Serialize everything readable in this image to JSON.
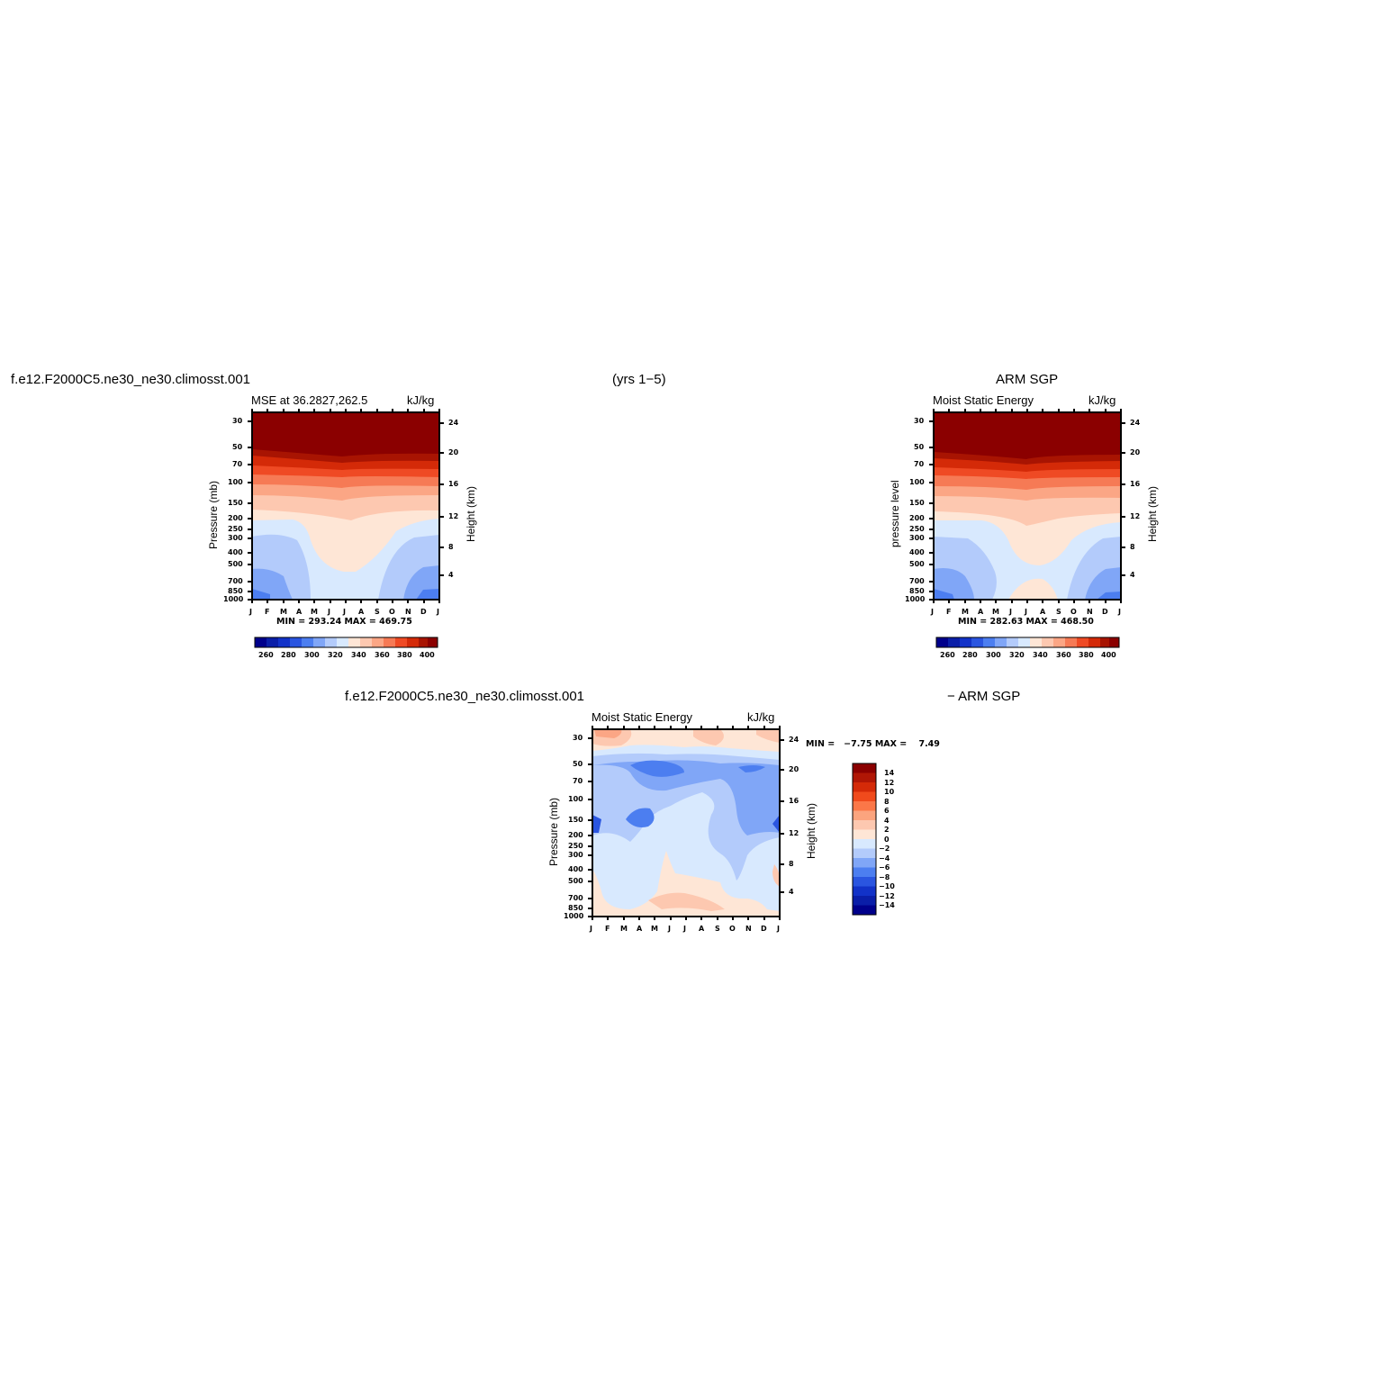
{
  "headers": {
    "case_left": "f.e12.F2000C5.ne30_ne30.climosst.001",
    "years": "(yrs 1−5)",
    "obs_right": "ARM SGP",
    "case_bottom": "f.e12.F2000C5.ne30_ne30.climosst.001",
    "diff_suffix": "− ARM SGP"
  },
  "chart_data": [
    {
      "type": "heatmap",
      "panel": "model",
      "title_left": "MSE at 36.2827,262.5",
      "title_right": "kJ/kg",
      "ylabel": "Pressure (mb)",
      "ylabel_right": "Height (km)",
      "x_ticks": [
        "J",
        "F",
        "M",
        "A",
        "M",
        "J",
        "J",
        "A",
        "S",
        "O",
        "N",
        "D",
        "J"
      ],
      "y_ticks": [
        "30",
        "50",
        "70",
        "100",
        "150",
        "200",
        "250",
        "300",
        "400",
        "500",
        "700",
        "850",
        "1000"
      ],
      "y_right_ticks": [
        "24",
        "20",
        "16",
        "12",
        "8",
        "4"
      ],
      "minmax_text": "MIN = 293.24 MAX = 469.75",
      "colorbar_labels": [
        "260",
        "280",
        "300",
        "320",
        "340",
        "360",
        "380",
        "400"
      ],
      "colors": [
        "#00008b",
        "#0a1ea8",
        "#1232c8",
        "#2a55e0",
        "#4c7ef0",
        "#80a6f7",
        "#b3cbfb",
        "#d8e9fe",
        "#fee6d6",
        "#fdc8b0",
        "#fba685",
        "#f67a55",
        "#ef4a24",
        "#d42a08",
        "#a81402",
        "#8b0000"
      ],
      "levels": [
        260,
        270,
        280,
        290,
        300,
        310,
        320,
        330,
        340,
        350,
        360,
        370,
        380,
        390,
        400
      ]
    },
    {
      "type": "heatmap",
      "panel": "obs",
      "title_left": "Moist Static Energy",
      "title_right": "kJ/kg",
      "ylabel": "pressure level",
      "ylabel_right": "Height (km)",
      "x_ticks": [
        "J",
        "F",
        "M",
        "A",
        "M",
        "J",
        "J",
        "A",
        "S",
        "O",
        "N",
        "D",
        "J"
      ],
      "y_ticks": [
        "30",
        "50",
        "70",
        "100",
        "150",
        "200",
        "250",
        "300",
        "400",
        "500",
        "700",
        "850",
        "1000"
      ],
      "y_right_ticks": [
        "24",
        "20",
        "16",
        "12",
        "8",
        "4"
      ],
      "minmax_text": "MIN = 282.63 MAX = 468.50",
      "colorbar_labels": [
        "260",
        "280",
        "300",
        "320",
        "340",
        "360",
        "380",
        "400"
      ]
    },
    {
      "type": "heatmap",
      "panel": "difference",
      "title_left": "Moist Static Energy",
      "title_right": "kJ/kg",
      "ylabel": "Pressure (mb)",
      "ylabel_right": "Height (km)",
      "x_ticks": [
        "J",
        "F",
        "M",
        "A",
        "M",
        "J",
        "J",
        "A",
        "S",
        "O",
        "N",
        "D",
        "J"
      ],
      "y_ticks": [
        "30",
        "50",
        "70",
        "100",
        "150",
        "200",
        "250",
        "300",
        "400",
        "500",
        "700",
        "850",
        "1000"
      ],
      "y_right_ticks": [
        "24",
        "20",
        "16",
        "12",
        "8",
        "4"
      ],
      "minmax_text": "MIN =   −7.75 MAX =    7.49",
      "colorbar_labels": [
        "14",
        "12",
        "10",
        "8",
        "6",
        "4",
        "2",
        "0",
        "−2",
        "−4",
        "−6",
        "−8",
        "−10",
        "−12",
        "−14"
      ],
      "colors": [
        "#8b0000",
        "#b01605",
        "#d42a08",
        "#f04a1c",
        "#fb7748",
        "#fba47e",
        "#fdc8b0",
        "#fee6d6",
        "#d8e9fe",
        "#b3cbfb",
        "#80a6f7",
        "#4c7ef0",
        "#2a55e0",
        "#1232c8",
        "#0a1ea8",
        "#00008b"
      ],
      "levels": [
        14,
        12,
        10,
        8,
        6,
        4,
        2,
        0,
        -2,
        -4,
        -6,
        -8,
        -10,
        -12,
        -14
      ]
    }
  ]
}
